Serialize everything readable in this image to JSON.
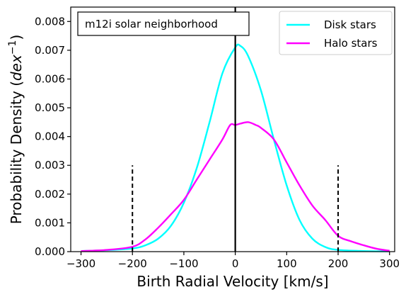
{
  "chart_data": {
    "type": "line",
    "xlabel": "Birth Radial Velocity [km/s]",
    "ylabel_prefix": "Probability Density (",
    "ylabel_unit": "dex",
    "ylabel_exp": "−1",
    "ylabel_suffix": ")",
    "xlim": [
      -320,
      310
    ],
    "ylim": [
      0,
      0.0085
    ],
    "xticks": [
      -300,
      -200,
      -100,
      0,
      100,
      200,
      300
    ],
    "xtick_labels": [
      "−300",
      "−200",
      "−100",
      "0",
      "100",
      "200",
      "300"
    ],
    "yticks": [
      0,
      0.001,
      0.002,
      0.003,
      0.004,
      0.005,
      0.006,
      0.007,
      0.008
    ],
    "ytick_labels": [
      "0.000",
      "0.001",
      "0.002",
      "0.003",
      "0.004",
      "0.005",
      "0.006",
      "0.007",
      "0.008"
    ],
    "grid": false,
    "legend_position": "top-right",
    "annotation": "m12i solar neighborhood",
    "series": [
      {
        "name": "Disk stars",
        "color": "#00ffff",
        "x": [
          -300,
          -250,
          -200,
          -175,
          -150,
          -125,
          -100,
          -75,
          -50,
          -25,
          0,
          10,
          25,
          50,
          75,
          100,
          125,
          150,
          175,
          200,
          250,
          300
        ],
        "y": [
          2e-05,
          5e-05,
          0.00011,
          0.00022,
          0.00045,
          0.0009,
          0.0017,
          0.0029,
          0.0045,
          0.0062,
          0.0071,
          0.00715,
          0.0068,
          0.0056,
          0.0039,
          0.0023,
          0.0011,
          0.00045,
          0.00016,
          6e-05,
          2e-05,
          1e-05
        ]
      },
      {
        "name": "Halo stars",
        "color": "#ff00ff",
        "x": [
          -300,
          -250,
          -200,
          -175,
          -150,
          -125,
          -100,
          -75,
          -50,
          -25,
          -10,
          0,
          10,
          25,
          40,
          50,
          75,
          100,
          125,
          150,
          175,
          200,
          225,
          250,
          275,
          300
        ],
        "y": [
          2e-05,
          6e-05,
          0.00017,
          0.00042,
          0.00083,
          0.0013,
          0.0018,
          0.0025,
          0.0032,
          0.0039,
          0.0044,
          0.0044,
          0.00445,
          0.0045,
          0.0044,
          0.0043,
          0.0039,
          0.0031,
          0.0023,
          0.0016,
          0.0011,
          0.00055,
          0.00036,
          0.00022,
          0.0001,
          3e-05
        ]
      }
    ],
    "vertical_lines": [
      {
        "x": 0,
        "y_top": 0.0085,
        "style": "solid",
        "color": "#000000"
      },
      {
        "x": -200,
        "y_top": 0.003,
        "style": "dashed",
        "color": "#000000"
      },
      {
        "x": 200,
        "y_top": 0.003,
        "style": "dashed",
        "color": "#000000"
      }
    ]
  }
}
